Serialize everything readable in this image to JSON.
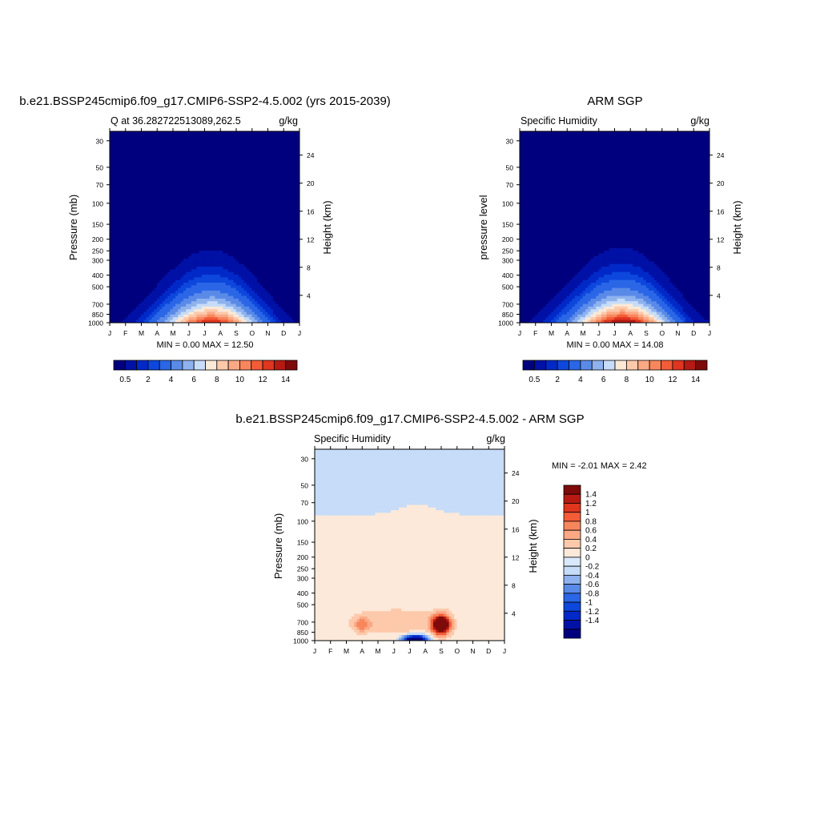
{
  "chart_data": [
    {
      "type": "heatmap",
      "title": "b.e21.BSSP245cmip6.f09_g17.CMIP6-SSP2-4.5.002 (yrs 2015-2039)",
      "left_label": "Q at 36.282722513089,262.5",
      "right_label": "g/kg",
      "ylabel": "Pressure (mb)",
      "y2label": "Height (km)",
      "x_ticklabels": [
        "J",
        "F",
        "M",
        "A",
        "M",
        "J",
        "J",
        "A",
        "S",
        "O",
        "N",
        "D",
        "J"
      ],
      "y_ticks": [
        30,
        50,
        70,
        100,
        150,
        200,
        250,
        300,
        400,
        500,
        700,
        850,
        1000
      ],
      "y2_ticks": [
        4,
        8,
        12,
        16,
        20,
        24
      ],
      "min_max_text": "MIN =   0.00 MAX =  12.50",
      "min": 0.0,
      "max": 12.5,
      "peak": {
        "month": 6.9,
        "pressure": 950
      },
      "levels": [
        0.5,
        1,
        1.5,
        2,
        3,
        4,
        5,
        6,
        7,
        8,
        9,
        10,
        11,
        12,
        13,
        14
      ],
      "colorbar_labels": [
        "0.5",
        "2",
        "4",
        "6",
        "8",
        "10",
        "12",
        "14"
      ]
    },
    {
      "type": "heatmap",
      "title": "ARM SGP",
      "left_label": "Specific Humidity",
      "right_label": "g/kg",
      "ylabel": "pressure level",
      "y2label": "Height (km)",
      "x_ticklabels": [
        "J",
        "F",
        "M",
        "A",
        "M",
        "J",
        "J",
        "A",
        "S",
        "O",
        "N",
        "D",
        "J"
      ],
      "y_ticks": [
        30,
        50,
        70,
        100,
        150,
        200,
        250,
        300,
        400,
        500,
        700,
        850,
        1000
      ],
      "y2_ticks": [
        4,
        8,
        12,
        16,
        20,
        24
      ],
      "min_max_text": "MIN =   0.00 MAX =  14.08",
      "min": 0.0,
      "max": 14.08,
      "peak": {
        "month": 7.0,
        "pressure": 950
      },
      "levels": [
        0.5,
        1,
        1.5,
        2,
        3,
        4,
        5,
        6,
        7,
        8,
        9,
        10,
        11,
        12,
        13,
        14
      ],
      "colorbar_labels": [
        "0.5",
        "2",
        "4",
        "6",
        "8",
        "10",
        "12",
        "14"
      ]
    },
    {
      "type": "heatmap",
      "title": "b.e21.BSSP245cmip6.f09_g17.CMIP6-SSP2-4.5.002 - ARM SGP",
      "left_label": "Specific Humidity",
      "right_label": "g/kg",
      "ylabel": "Pressure (mb)",
      "y2label": "Height (km)",
      "x_ticklabels": [
        "J",
        "F",
        "M",
        "A",
        "M",
        "J",
        "J",
        "A",
        "S",
        "O",
        "N",
        "D",
        "J"
      ],
      "y_ticks": [
        30,
        50,
        70,
        100,
        150,
        200,
        250,
        300,
        400,
        500,
        700,
        850,
        1000
      ],
      "y2_ticks": [
        4,
        8,
        12,
        16,
        20,
        24
      ],
      "min_max_text": "MIN =  -2.01 MAX =   2.42",
      "min": -2.01,
      "max": 2.42,
      "colorbar_labels": [
        "1.4",
        "1.2",
        "1",
        "0.8",
        "0.6",
        "0.4",
        "0.2",
        "0",
        "-0.2",
        "-0.4",
        "-0.6",
        "-0.8",
        "-1",
        "-1.2",
        "-1.4"
      ]
    }
  ],
  "colors": {
    "seq_palette": [
      "#00007f",
      "#0011a6",
      "#0029c8",
      "#0d47dc",
      "#2a66e6",
      "#5a8ae8",
      "#8fb2ee",
      "#c6dcf8",
      "#fbe9d7",
      "#fdc9ab",
      "#fba985",
      "#f8865d",
      "#f35c37",
      "#e0351f",
      "#b71a12",
      "#7e0a0a"
    ],
    "diff_palette": [
      "#00007f",
      "#0011a6",
      "#0029c8",
      "#0d47dc",
      "#2a66e6",
      "#5a8ae8",
      "#8fb2ee",
      "#c6dcf8",
      "#d9e8fb",
      "#fde9d9",
      "#fdc9ab",
      "#fba985",
      "#f8865d",
      "#f35c37",
      "#e0351f",
      "#b71a12",
      "#7e0a0a"
    ]
  }
}
